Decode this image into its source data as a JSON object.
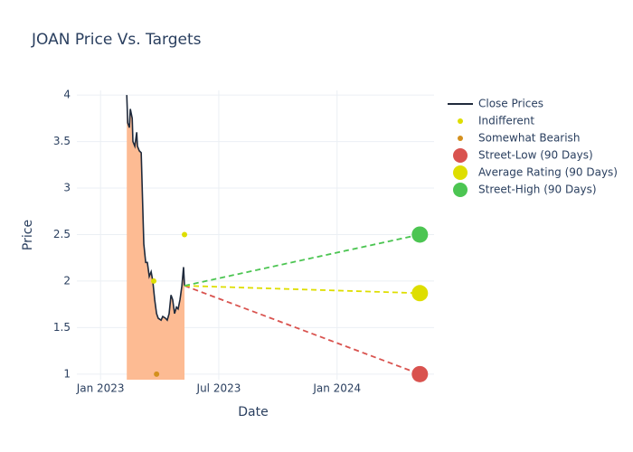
{
  "chart_data": {
    "type": "line",
    "title": "JOAN Price Vs. Targets",
    "x_label": "Date",
    "y_label": "Price",
    "xlim": [
      2022.9,
      2024.41
    ],
    "ylim": [
      0.94,
      4.05
    ],
    "xticks": [
      {
        "value": 2023.0,
        "label": "Jan 2023"
      },
      {
        "value": 2023.5,
        "label": "Jul 2023"
      },
      {
        "value": 2024.0,
        "label": "Jan 2024"
      }
    ],
    "yticks": [
      1,
      1.5,
      2,
      2.5,
      3,
      3.5,
      4
    ],
    "grid": true,
    "legend": "right",
    "series": [
      {
        "name": "Close Prices",
        "color": "#1f2a3c",
        "fill_color": "#fdbb93",
        "mode": "area",
        "x": [
          2023.111,
          2023.115,
          2023.122,
          2023.126,
          2023.134,
          2023.137,
          2023.145,
          2023.153,
          2023.156,
          2023.164,
          2023.172,
          2023.183,
          2023.191,
          2023.198,
          2023.206,
          2023.214,
          2023.221,
          2023.229,
          2023.237,
          2023.244,
          2023.256,
          2023.263,
          2023.275,
          2023.282,
          2023.29,
          2023.298,
          2023.305,
          2023.313,
          2023.321,
          2023.328,
          2023.336,
          2023.344,
          2023.351,
          2023.355
        ],
        "values": [
          4.0,
          3.7,
          3.65,
          3.85,
          3.75,
          3.5,
          3.45,
          3.6,
          3.45,
          3.4,
          3.38,
          2.4,
          2.2,
          2.2,
          2.05,
          2.1,
          2.0,
          1.8,
          1.65,
          1.6,
          1.58,
          1.62,
          1.6,
          1.58,
          1.65,
          1.85,
          1.8,
          1.65,
          1.72,
          1.7,
          1.8,
          1.95,
          2.15,
          1.95
        ]
      },
      {
        "name": "Indifferent",
        "color": "#dede00",
        "mode": "markers",
        "x": [
          2023.225,
          2023.355
        ],
        "values": [
          2.0,
          2.5
        ]
      },
      {
        "name": "Somewhat Bearish",
        "color": "#d4901e",
        "mode": "markers",
        "x": [
          2023.237
        ],
        "values": [
          1.0
        ]
      },
      {
        "name": "Street-Low (90 Days)",
        "color": "#d9534f",
        "mode": "target",
        "x": [
          2023.355,
          2024.35
        ],
        "values": [
          1.95,
          1.0
        ]
      },
      {
        "name": "Average Rating (90 Days)",
        "color": "#dede00",
        "mode": "target",
        "x": [
          2023.355,
          2024.35
        ],
        "values": [
          1.95,
          1.87
        ]
      },
      {
        "name": "Street-High (90 Days)",
        "color": "#4cc552",
        "mode": "target",
        "x": [
          2023.355,
          2024.35
        ],
        "values": [
          1.95,
          2.5
        ]
      }
    ]
  }
}
